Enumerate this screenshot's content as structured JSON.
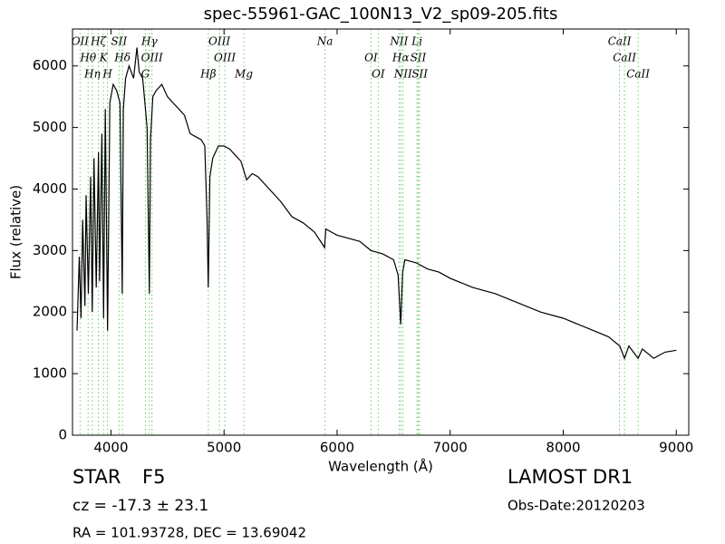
{
  "chart_data": {
    "type": "line",
    "title": "spec-55961-GAC_100N13_V2_sp09-205.fits",
    "x_label": "Wavelength (Å)",
    "y_label": "Flux (relative)",
    "color": "#000000",
    "line_marker_color": "#66cc66",
    "x": [
      3700,
      3720,
      3735,
      3750,
      3770,
      3780,
      3800,
      3820,
      3835,
      3850,
      3870,
      3890,
      3900,
      3920,
      3935,
      3950,
      3970,
      3990,
      4000,
      4020,
      4050,
      4080,
      4100,
      4110,
      4130,
      4160,
      4200,
      4230,
      4250,
      4280,
      4300,
      4320,
      4340,
      4350,
      4370,
      4400,
      4450,
      4500,
      4550,
      4600,
      4650,
      4700,
      4750,
      4800,
      4830,
      4850,
      4861,
      4875,
      4900,
      4950,
      5000,
      5050,
      5100,
      5150,
      5200,
      5250,
      5300,
      5400,
      5500,
      5600,
      5700,
      5800,
      5890,
      5900,
      5950,
      6000,
      6100,
      6200,
      6300,
      6400,
      6500,
      6540,
      6563,
      6580,
      6600,
      6700,
      6800,
      6900,
      7000,
      7200,
      7400,
      7600,
      7800,
      8000,
      8200,
      8400,
      8500,
      8542,
      8580,
      8662,
      8700,
      8800,
      8900,
      9000
    ],
    "values": [
      1700,
      2900,
      1900,
      3500,
      2100,
      3900,
      2300,
      4200,
      2000,
      4500,
      2400,
      4600,
      2500,
      4900,
      1900,
      5300,
      1700,
      5400,
      5500,
      5700,
      5600,
      5400,
      2300,
      5300,
      5800,
      6000,
      5800,
      6300,
      5900,
      5800,
      5400,
      5000,
      2300,
      4800,
      5500,
      5600,
      5700,
      5500,
      5400,
      5300,
      5200,
      4900,
      4850,
      4800,
      4700,
      3500,
      2400,
      4200,
      4500,
      4700,
      4700,
      4650,
      4550,
      4450,
      4150,
      4250,
      4200,
      4000,
      3800,
      3550,
      3450,
      3300,
      3050,
      3350,
      3300,
      3250,
      3200,
      3150,
      3000,
      2950,
      2850,
      2600,
      1800,
      2650,
      2850,
      2800,
      2700,
      2650,
      2550,
      2400,
      2300,
      2150,
      2000,
      1900,
      1750,
      1600,
      1450,
      1250,
      1450,
      1250,
      1400,
      1250,
      1350,
      1380
    ],
    "xlim": [
      3660,
      9110
    ],
    "ylim": [
      0,
      6600
    ],
    "xticks": [
      4000,
      5000,
      6000,
      7000,
      8000,
      9000
    ],
    "yticks": [
      0,
      1000,
      2000,
      3000,
      4000,
      5000,
      6000
    ],
    "lines": [
      {
        "wavelength": 3727,
        "label": "OII"
      },
      {
        "wavelength": 3798,
        "label": "Hθ"
      },
      {
        "wavelength": 3835,
        "label": "Hη"
      },
      {
        "wavelength": 3889,
        "label": "Hζ"
      },
      {
        "wavelength": 3934,
        "label": "K"
      },
      {
        "wavelength": 3969,
        "label": "H"
      },
      {
        "wavelength": 4072,
        "label": "SII"
      },
      {
        "wavelength": 4102,
        "label": "Hδ"
      },
      {
        "wavelength": 4305,
        "label": "G"
      },
      {
        "wavelength": 4340,
        "label": "Hγ"
      },
      {
        "wavelength": 4363,
        "label": "OIII"
      },
      {
        "wavelength": 4861,
        "label": "Hβ"
      },
      {
        "wavelength": 4959,
        "label": "OIII"
      },
      {
        "wavelength": 5007,
        "label": "OIII"
      },
      {
        "wavelength": 5175,
        "label": "Mg"
      },
      {
        "wavelength": 5893,
        "label": "Na"
      },
      {
        "wavelength": 6300,
        "label": "OI"
      },
      {
        "wavelength": 6364,
        "label": "OI"
      },
      {
        "wavelength": 6548,
        "label": "NII"
      },
      {
        "wavelength": 6563,
        "label": "Hα"
      },
      {
        "wavelength": 6583,
        "label": "NII"
      },
      {
        "wavelength": 6707,
        "label": "Li"
      },
      {
        "wavelength": 6717,
        "label": "SII"
      },
      {
        "wavelength": 6731,
        "label": "SII"
      },
      {
        "wavelength": 8498,
        "label": "CaII"
      },
      {
        "wavelength": 8542,
        "label": "CaII"
      },
      {
        "wavelength": 8662,
        "label": "CaII"
      }
    ],
    "object_class": "STAR",
    "subclass": "F5",
    "redshift_text": "cz = -17.3 ± 23.1",
    "coords_text": "RA = 101.93728, DEC = 13.69042",
    "survey": "LAMOST DR1",
    "obs_date": "Obs-Date:20120203"
  }
}
